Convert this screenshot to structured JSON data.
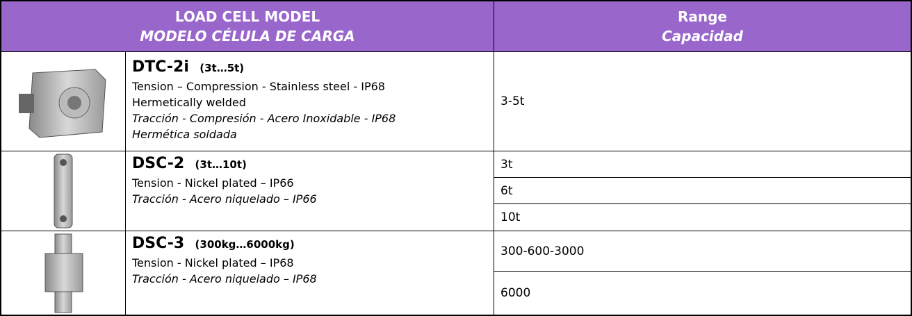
{
  "header": {
    "model": "LOAD CELL MODEL",
    "model_es": "MODELO CÉLULA DE CARGA",
    "range": "Range",
    "range_es": "Capacidad"
  },
  "rows": [
    {
      "model": "DTC-2i",
      "range_note": "(3t…5t)",
      "lines_en": [
        "Tension – Compression - Stainless steel - IP68",
        "Hermetically welded"
      ],
      "lines_es": [
        "Tracción - Compresión - Acero Inoxidable - IP68",
        "Hermética soldada"
      ],
      "ranges": [
        "3-5t"
      ]
    },
    {
      "model": "DSC-2",
      "range_note": "(3t…10t)",
      "lines_en": [
        "Tension - Nickel plated – IP66"
      ],
      "lines_es": [
        "Tracción - Acero niquelado – IP66"
      ],
      "ranges": [
        "3t",
        "6t",
        "10t"
      ]
    },
    {
      "model": "DSC-3",
      "range_note": "(300kg…6000kg)",
      "lines_en": [
        "Tension - Nickel plated – IP68"
      ],
      "lines_es": [
        "Tracción - Acero niquelado – IP68"
      ],
      "ranges": [
        "300-600-3000",
        "6000"
      ]
    }
  ]
}
